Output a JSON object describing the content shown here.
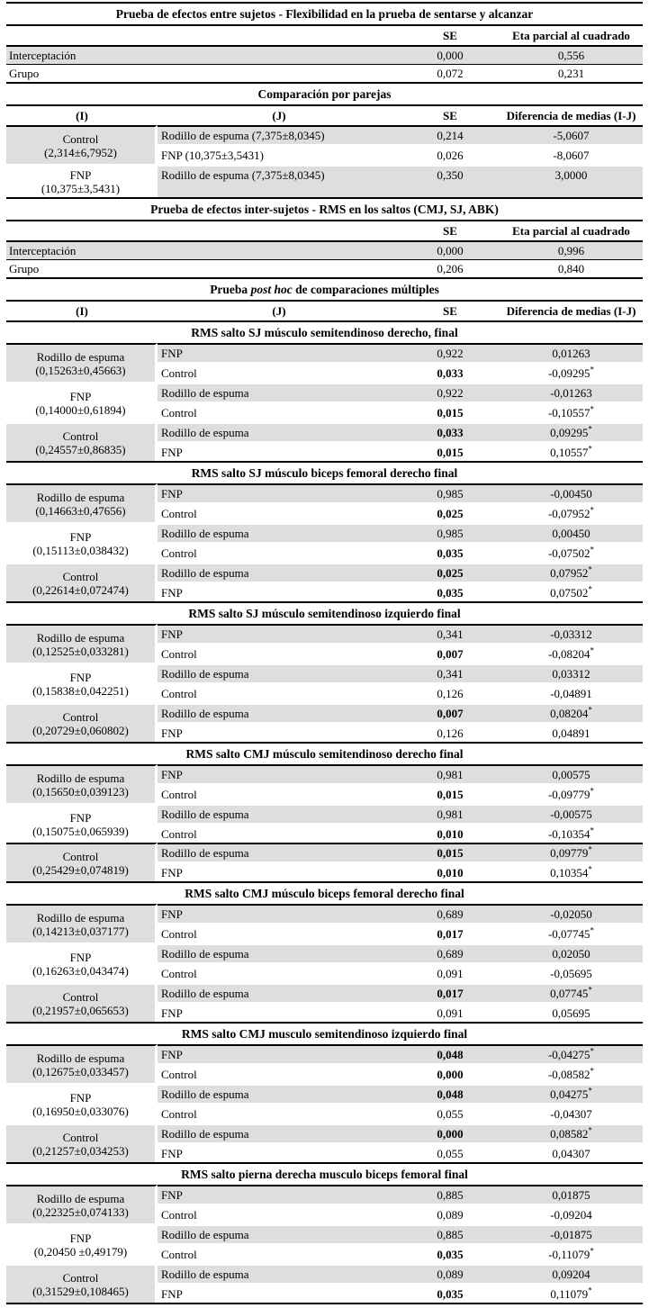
{
  "effects_table_1": {
    "title": "Prueba de efectos entre sujetos - Flexibilidad en la prueba de sentarse y alcanzar",
    "col_headers": [
      "SE",
      "Eta parcial al cuadrado"
    ],
    "rows": [
      {
        "label": "Interceptación",
        "se": "0,000",
        "eta": "0,556"
      },
      {
        "label": "Grupo",
        "se": "0,072",
        "eta": "0,231"
      }
    ]
  },
  "pairwise_table": {
    "title": "Comparación por parejas",
    "col_headers": [
      "(I)",
      "(J)",
      "SE",
      "Diferencia de medias (I-J)"
    ],
    "groups": [
      {
        "i_label": "Control",
        "i_stats": "(2,314±6,7952)",
        "rows": [
          {
            "j": "Rodillo de espuma (7,375±8,0345)",
            "se": "0,214",
            "se_bold": false,
            "diff": "-5,0607"
          },
          {
            "j": "FNP (10,375±3,5431)",
            "se": "0,026",
            "se_bold": false,
            "diff": "-8,0607"
          }
        ]
      },
      {
        "i_label": "FNP",
        "i_stats": "(10,375±3,5431)",
        "rows": [
          {
            "j": "Rodillo de espuma (7,375±8,0345)",
            "se": "0,350",
            "se_bold": false,
            "diff": "3,0000"
          }
        ]
      }
    ]
  },
  "effects_table_2": {
    "title": "Prueba de efectos inter-sujetos - RMS en los saltos (CMJ, SJ, ABK)",
    "col_headers": [
      "SE",
      "Eta parcial al cuadrado"
    ],
    "rows": [
      {
        "label": "Interceptación",
        "se": "0,000",
        "eta": "0,996"
      },
      {
        "label": "Grupo",
        "se": "0,206",
        "eta": "0,840"
      }
    ]
  },
  "posthoc_table": {
    "title_parts": {
      "prefix": "Prueba ",
      "italic": "post hoc",
      "suffix": " de comparaciones múltiples"
    },
    "col_headers": [
      "(I)",
      "(J)",
      "SE",
      "Diferencia de medias (I-J)"
    ],
    "sections": [
      {
        "title": "RMS salto SJ músculo semitendinoso derecho, final",
        "groups": [
          {
            "i_label": "Rodillo de espuma",
            "i_stats": "(0,15263±0,45663)",
            "rows": [
              {
                "j": "FNP",
                "se": "0,922",
                "se_bold": false,
                "diff": "0,01263"
              },
              {
                "j": "Control",
                "se": "0,033",
                "se_bold": true,
                "diff": "-0,09295*"
              }
            ]
          },
          {
            "i_label": "FNP",
            "i_stats": "(0,14000±0,61894)",
            "rows": [
              {
                "j": "Rodillo de espuma",
                "se": "0,922",
                "se_bold": false,
                "diff": "-0,01263"
              },
              {
                "j": "Control",
                "se": "0,015",
                "se_bold": true,
                "diff": "-0,10557*"
              }
            ]
          },
          {
            "i_label": "Control",
            "i_stats": "(0,24557±0,86835)",
            "rows": [
              {
                "j": "Rodillo de espuma",
                "se": "0,033",
                "se_bold": true,
                "diff": "0,09295*"
              },
              {
                "j": "FNP",
                "se": "0,015",
                "se_bold": true,
                "diff": "0,10557*"
              }
            ]
          }
        ]
      },
      {
        "title": "RMS salto SJ músculo biceps femoral derecho final",
        "groups": [
          {
            "i_label": "Rodillo de espuma",
            "i_stats": "(0,14663±0,47656)",
            "rows": [
              {
                "j": "FNP",
                "se": "0,985",
                "se_bold": false,
                "diff": "-0,00450"
              },
              {
                "j": "Control",
                "se": "0,025",
                "se_bold": true,
                "diff": "-0,07952*"
              }
            ]
          },
          {
            "i_label": "FNP",
            "i_stats": "(0,15113±0,038432)",
            "rows": [
              {
                "j": "Rodillo de espuma",
                "se": "0,985",
                "se_bold": false,
                "diff": "0,00450"
              },
              {
                "j": "Control",
                "se": "0,035",
                "se_bold": true,
                "diff": "-0,07502*"
              }
            ]
          },
          {
            "i_label": "Control",
            "i_stats": "(0,22614±0,072474)",
            "rows": [
              {
                "j": "Rodillo de espuma",
                "se": "0,025",
                "se_bold": true,
                "diff": "0,07952*"
              },
              {
                "j": "FNP",
                "se": "0,035",
                "se_bold": true,
                "diff": "0,07502*"
              }
            ]
          }
        ]
      },
      {
        "title": "RMS salto SJ músculo semitendinoso izquierdo final",
        "groups": [
          {
            "i_label": "Rodillo de espuma",
            "i_stats": "(0,12525±0,033281)",
            "rows": [
              {
                "j": "FNP",
                "se": "0,341",
                "se_bold": false,
                "diff": "-0,03312"
              },
              {
                "j": "Control",
                "se": "0,007",
                "se_bold": true,
                "diff": "-0,08204*"
              }
            ]
          },
          {
            "i_label": "FNP",
            "i_stats": "(0,15838±0,042251)",
            "rows": [
              {
                "j": "Rodillo de espuma",
                "se": "0,341",
                "se_bold": false,
                "diff": "0,03312"
              },
              {
                "j": "Control",
                "se": "0,126",
                "se_bold": false,
                "diff": "-0,04891"
              }
            ]
          },
          {
            "i_label": "Control",
            "i_stats": "(0,20729±0,060802)",
            "rows": [
              {
                "j": "Rodillo de espuma",
                "se": "0,007",
                "se_bold": true,
                "diff": "0,08204*"
              },
              {
                "j": "FNP",
                "se": "0,126",
                "se_bold": false,
                "diff": "0,04891"
              }
            ]
          }
        ]
      },
      {
        "title": "RMS salto CMJ músculo semitendinoso derecho final",
        "rule_before_group": 2,
        "groups": [
          {
            "i_label": "Rodillo de espuma",
            "i_stats": "(0,15650±0,039123)",
            "rows": [
              {
                "j": "FNP",
                "se": "0,981",
                "se_bold": false,
                "diff": "0,00575"
              },
              {
                "j": "Control",
                "se": "0,015",
                "se_bold": true,
                "diff": "-0,09779*"
              }
            ]
          },
          {
            "i_label": "FNP",
            "i_stats": "(0,15075±0,065939)",
            "rows": [
              {
                "j": "Rodillo de espuma",
                "se": "0,981",
                "se_bold": false,
                "diff": "-0,00575"
              },
              {
                "j": "Control",
                "se": "0,010",
                "se_bold": true,
                "diff": "-0,10354*"
              }
            ]
          },
          {
            "i_label": "Control",
            "i_stats": "(0,25429±0,074819)",
            "rows": [
              {
                "j": "Rodillo de espuma",
                "se": "0,015",
                "se_bold": true,
                "diff": "0,09779*"
              },
              {
                "j": "FNP",
                "se": "0,010",
                "se_bold": true,
                "diff": "0,10354*"
              }
            ]
          }
        ]
      },
      {
        "title": "RMS salto CMJ músculo  biceps femoral derecho final",
        "groups": [
          {
            "i_label": "Rodillo de espuma",
            "i_stats": "(0,14213±0,037177)",
            "rows": [
              {
                "j": "FNP",
                "se": "0,689",
                "se_bold": false,
                "diff": "-0,02050"
              },
              {
                "j": "Control",
                "se": "0,017",
                "se_bold": true,
                "diff": "-0,07745*"
              }
            ]
          },
          {
            "i_label": "FNP",
            "i_stats": "(0,16263±0,043474)",
            "rows": [
              {
                "j": "Rodillo de espuma",
                "se": "0,689",
                "se_bold": false,
                "diff": "0,02050"
              },
              {
                "j": "Control",
                "se": "0,091",
                "se_bold": false,
                "diff": "-0,05695"
              }
            ]
          },
          {
            "i_label": "Control",
            "i_stats": "(0,21957±0,065653)",
            "rows": [
              {
                "j": "Rodillo de espuma",
                "se": "0,017",
                "se_bold": true,
                "diff": "0,07745*"
              },
              {
                "j": "FNP",
                "se": "0,091",
                "se_bold": false,
                "diff": "0,05695"
              }
            ]
          }
        ]
      },
      {
        "title": "RMS salto CMJ musculo semitendinoso izquierdo final",
        "groups": [
          {
            "i_label": "Rodillo de espuma",
            "i_stats": "(0,12675±0,033457)",
            "rows": [
              {
                "j": "FNP",
                "se": "0,048",
                "se_bold": true,
                "diff": "-0,04275*"
              },
              {
                "j": "Control",
                "se": "0,000",
                "se_bold": true,
                "diff": "-0,08582*"
              }
            ]
          },
          {
            "i_label": "FNP",
            "i_stats": "(0,16950±0,033076)",
            "rows": [
              {
                "j": "Rodillo de espuma",
                "se": "0,048",
                "se_bold": true,
                "diff": "0,04275*"
              },
              {
                "j": "Control",
                "se": "0,055",
                "se_bold": false,
                "diff": "-0,04307"
              }
            ]
          },
          {
            "i_label": "Control",
            "i_stats": "(0,21257±0,034253)",
            "rows": [
              {
                "j": "Rodillo de espuma",
                "se": "0,000",
                "se_bold": true,
                "diff": "0,08582*"
              },
              {
                "j": "FNP",
                "se": "0,055",
                "se_bold": false,
                "diff": "0,04307"
              }
            ]
          }
        ]
      },
      {
        "title": "RMS salto pierna derecha musculo biceps femoral final",
        "groups": [
          {
            "i_label": "Rodillo de espuma",
            "i_stats": "(0,22325±0,074133)",
            "rows": [
              {
                "j": "FNP",
                "se": "0,885",
                "se_bold": false,
                "diff": "0,01875"
              },
              {
                "j": "Control",
                "se": "0,089",
                "se_bold": false,
                "diff": "-0,09204"
              }
            ]
          },
          {
            "i_label": "FNP",
            "i_stats": "(0,20450 ±0,49179)",
            "rows": [
              {
                "j": "Rodillo de espuma",
                "se": "0,885",
                "se_bold": false,
                "diff": "-0,01875"
              },
              {
                "j": "Control",
                "se": "0,035",
                "se_bold": true,
                "diff": "-0,11079*"
              }
            ]
          },
          {
            "i_label": "Control",
            "i_stats": "(0,31529±0,108465)",
            "rows": [
              {
                "j": "Rodillo de espuma",
                "se": "0,089",
                "se_bold": false,
                "diff": "0,09204"
              },
              {
                "j": "FNP",
                "se": "0,035",
                "se_bold": true,
                "diff": "0,11079*"
              }
            ]
          }
        ]
      }
    ]
  }
}
